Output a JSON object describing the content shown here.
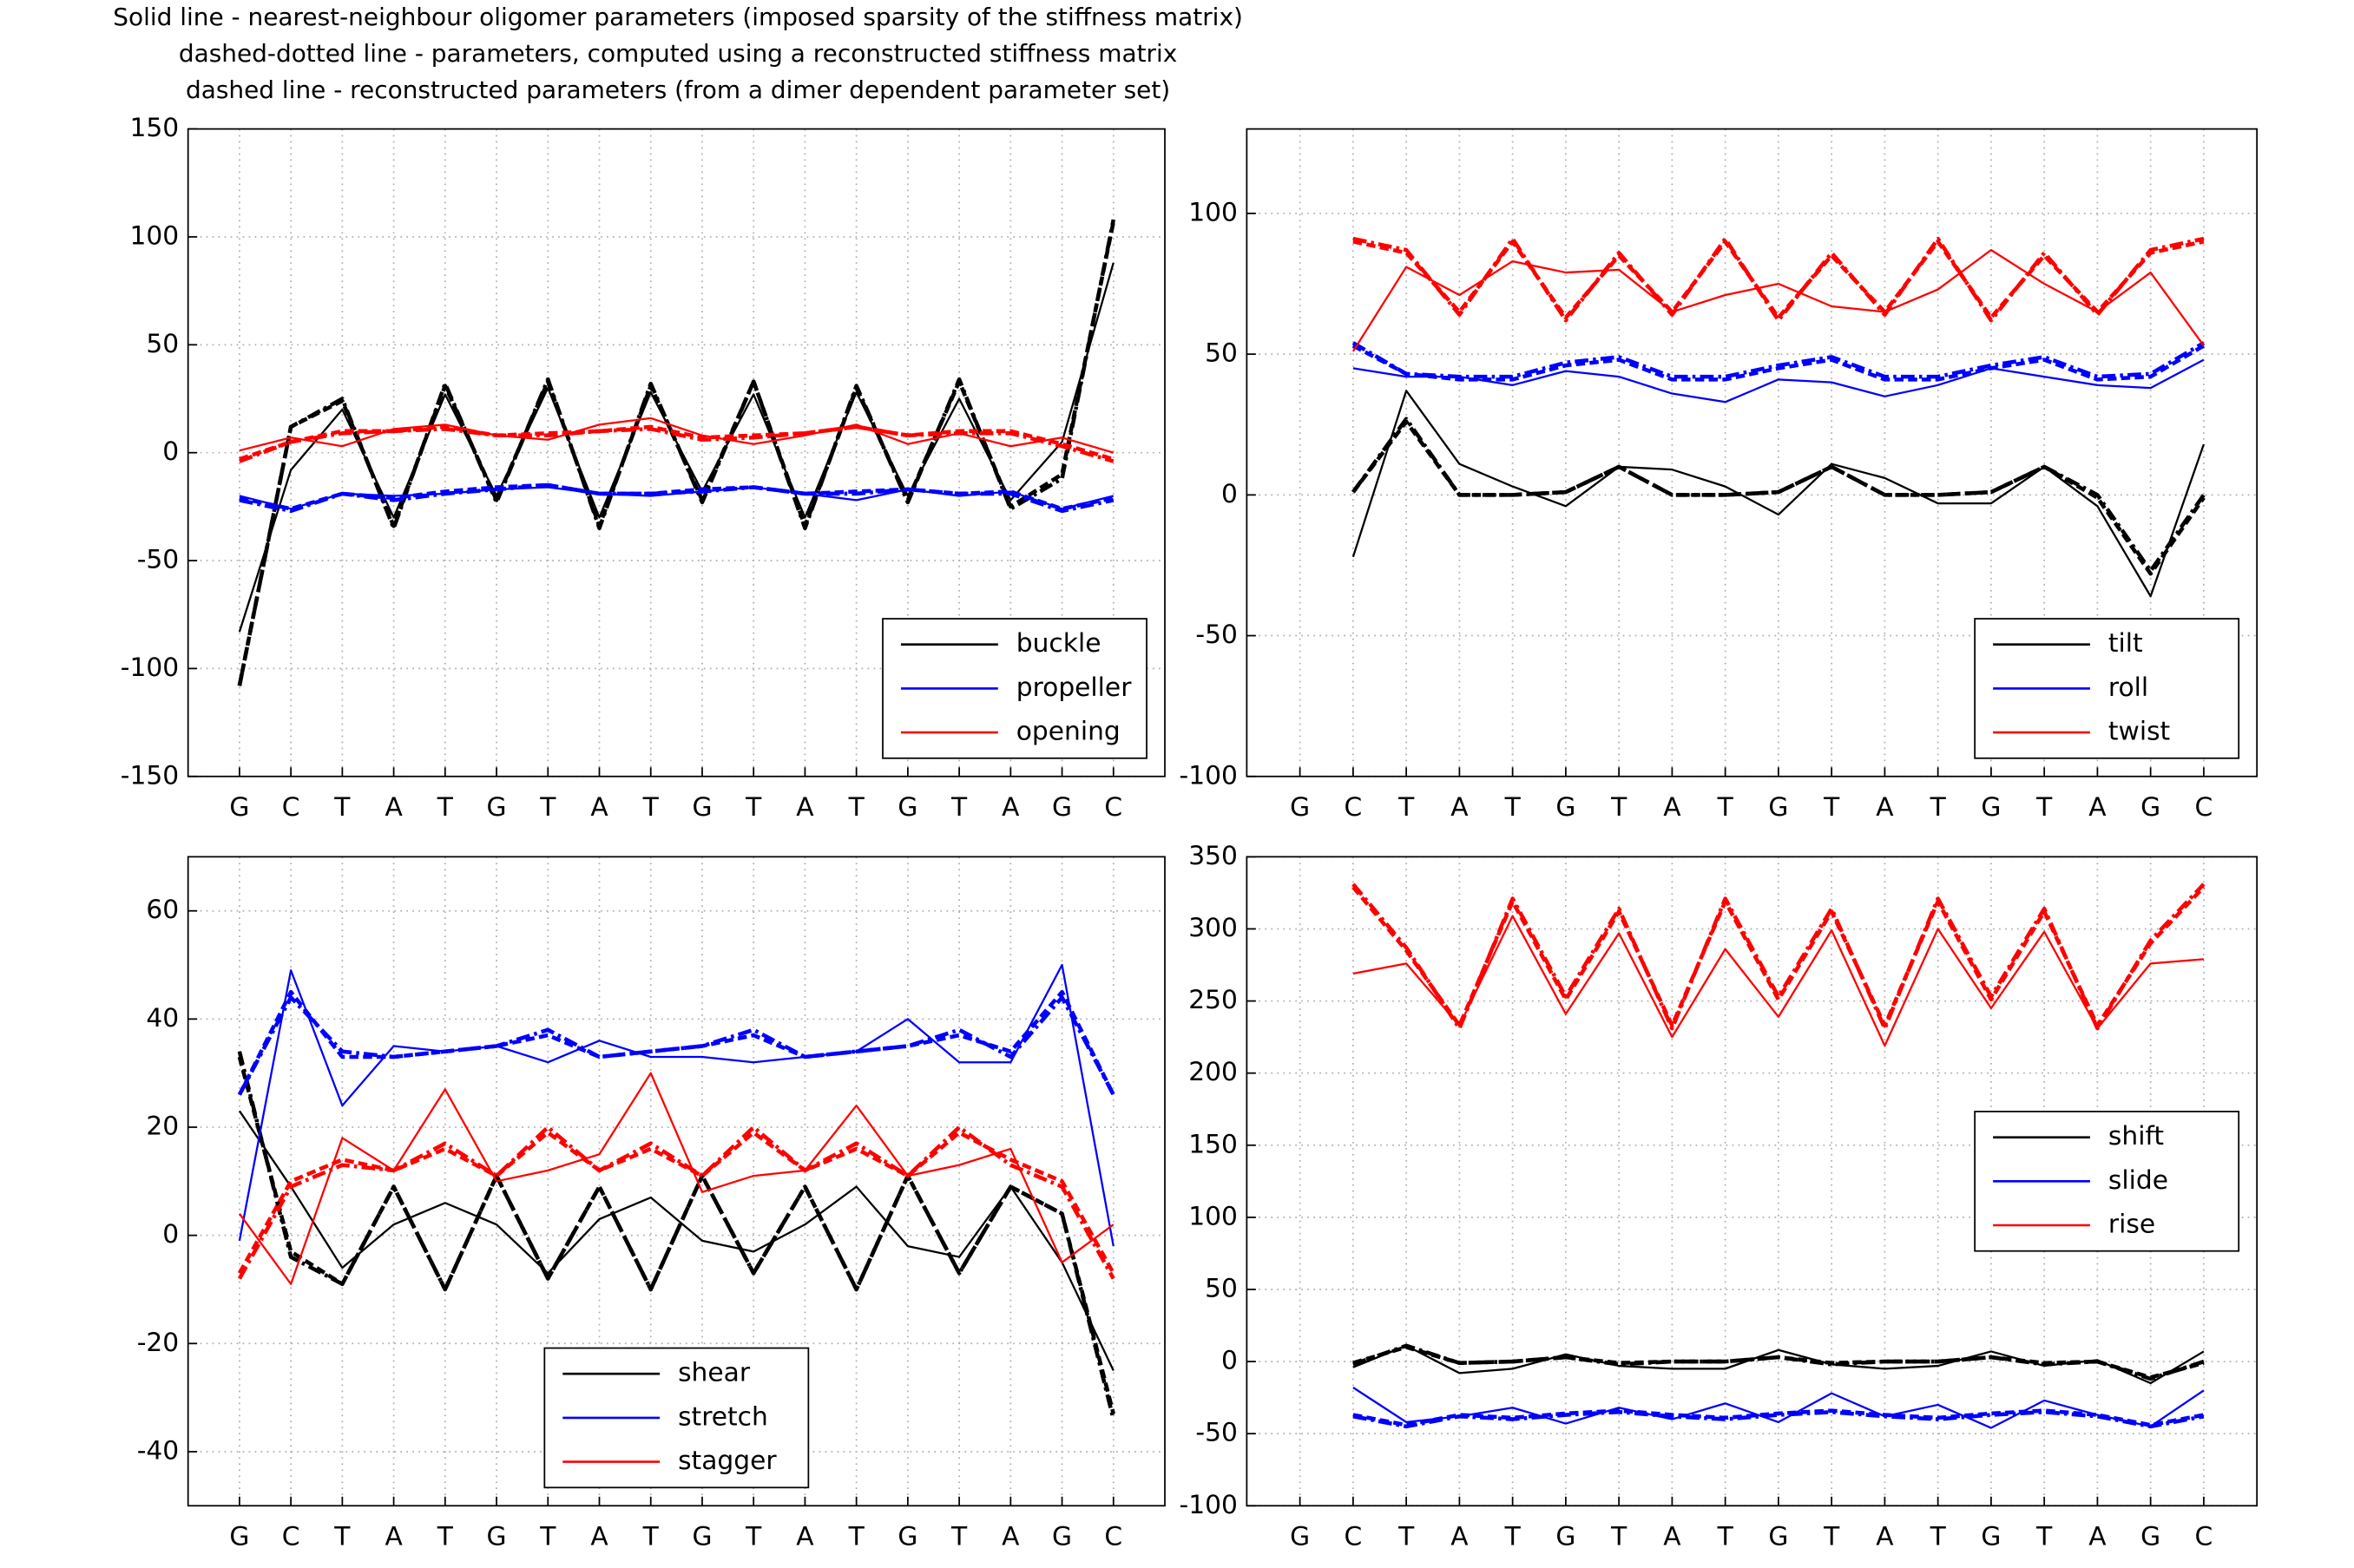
{
  "title": [
    "Solid line - nearest-neighbour oligomer parameters (imposed sparsity of the stiffness matrix)",
    "dashed-dotted line - parameters, computed using a reconstructed stiffness matrix",
    "dashed line - reconstructed parameters (from a dimer dependent parameter set)"
  ],
  "chart_data": [
    {
      "type": "line",
      "categories": [
        "G",
        "C",
        "T",
        "A",
        "T",
        "G",
        "T",
        "A",
        "T",
        "G",
        "T",
        "A",
        "T",
        "G",
        "T",
        "A",
        "G",
        "C"
      ],
      "ylim": [
        -150,
        150
      ],
      "yticks": [
        -150,
        -100,
        -50,
        0,
        50,
        100,
        150
      ],
      "grid": true,
      "legend": "lower right",
      "series": [
        {
          "name": "buckle",
          "color": "#000000",
          "style": "solid",
          "values": [
            -83,
            -8,
            20,
            -30,
            27,
            -20,
            30,
            -30,
            28,
            -18,
            27,
            -30,
            28,
            -20,
            25,
            -22,
            5,
            88
          ]
        },
        {
          "color": "#000000",
          "style": "dashdot",
          "values": [
            -108,
            12,
            25,
            -35,
            32,
            -23,
            34,
            -35,
            32,
            -23,
            33,
            -35,
            31,
            -23,
            34,
            -26,
            -12,
            108
          ]
        },
        {
          "color": "#000000",
          "style": "dashed",
          "values": [
            -108,
            12,
            24,
            -34,
            31,
            -22,
            33,
            -34,
            31,
            -22,
            33,
            -34,
            30,
            -22,
            33,
            -25,
            -10,
            107
          ]
        },
        {
          "name": "propeller",
          "color": "#0000ff",
          "style": "solid",
          "values": [
            -20,
            -26,
            -19,
            -20,
            -19,
            -17,
            -16,
            -19,
            -20,
            -18,
            -16,
            -19,
            -22,
            -17,
            -20,
            -18,
            -26,
            -20
          ]
        },
        {
          "color": "#0000ff",
          "style": "dashdot",
          "values": [
            -22,
            -27,
            -19,
            -22,
            -19,
            -17,
            -15,
            -19,
            -19,
            -18,
            -16,
            -19,
            -19,
            -17,
            -19,
            -19,
            -27,
            -22
          ]
        },
        {
          "color": "#0000ff",
          "style": "dashed",
          "values": [
            -21,
            -26,
            -19,
            -21,
            -18,
            -16,
            -15,
            -19,
            -19,
            -17,
            -16,
            -19,
            -18,
            -17,
            -19,
            -18,
            -26,
            -21
          ]
        },
        {
          "name": "opening",
          "color": "#ff0000",
          "style": "solid",
          "values": [
            1,
            7,
            3,
            11,
            13,
            8,
            6,
            13,
            16,
            8,
            4,
            8,
            13,
            4,
            9,
            3,
            7,
            0
          ]
        },
        {
          "color": "#ff0000",
          "style": "dashdot",
          "values": [
            -4,
            5,
            9,
            10,
            11,
            8,
            8,
            10,
            11,
            6,
            7,
            9,
            12,
            8,
            9,
            9,
            3,
            -4
          ]
        },
        {
          "color": "#ff0000",
          "style": "dashed",
          "values": [
            -3,
            5,
            10,
            10,
            12,
            8,
            9,
            10,
            12,
            7,
            8,
            9,
            12,
            8,
            10,
            10,
            4,
            -3
          ]
        }
      ]
    },
    {
      "type": "line",
      "categories": [
        "G",
        "C",
        "T",
        "A",
        "T",
        "G",
        "T",
        "A",
        "T",
        "G",
        "T",
        "A",
        "T",
        "G",
        "T",
        "A",
        "G",
        "C"
      ],
      "ylim": [
        -100,
        130
      ],
      "yticks": [
        -100,
        -50,
        0,
        50,
        100
      ],
      "grid": true,
      "legend": "lower right",
      "series": [
        {
          "name": "tilt",
          "color": "#000000",
          "style": "solid",
          "values": [
            null,
            -22,
            37,
            11,
            3,
            -4,
            10,
            9,
            3,
            -7,
            11,
            6,
            -3,
            -3,
            10,
            -4,
            -36,
            18
          ]
        },
        {
          "color": "#000000",
          "style": "dashdot",
          "values": [
            null,
            1,
            27,
            0,
            0,
            1,
            10,
            0,
            0,
            1,
            10,
            0,
            0,
            1,
            10,
            0,
            -27,
            0
          ]
        },
        {
          "color": "#000000",
          "style": "dashed",
          "values": [
            null,
            1,
            26,
            0,
            0,
            1,
            10,
            0,
            0,
            1,
            10,
            0,
            0,
            1,
            10,
            -1,
            -28,
            -1
          ]
        },
        {
          "name": "roll",
          "color": "#0000ff",
          "style": "solid",
          "values": [
            null,
            45,
            42,
            42,
            39,
            44,
            42,
            36,
            33,
            41,
            40,
            35,
            39,
            45,
            42,
            39,
            38,
            48
          ]
        },
        {
          "color": "#0000ff",
          "style": "dashdot",
          "values": [
            null,
            54,
            43,
            42,
            42,
            47,
            49,
            42,
            42,
            46,
            49,
            42,
            42,
            46,
            49,
            42,
            43,
            54
          ]
        },
        {
          "color": "#0000ff",
          "style": "dashed",
          "values": [
            null,
            53,
            43,
            41,
            41,
            46,
            48,
            41,
            41,
            45,
            48,
            41,
            41,
            45,
            48,
            41,
            42,
            53
          ]
        },
        {
          "name": "twist",
          "color": "#ff0000",
          "style": "solid",
          "values": [
            null,
            51,
            81,
            71,
            83,
            79,
            80,
            65,
            71,
            75,
            67,
            65,
            73,
            87,
            75,
            65,
            79,
            53
          ]
        },
        {
          "color": "#ff0000",
          "style": "dashdot",
          "values": [
            null,
            91,
            87,
            64,
            91,
            62,
            86,
            64,
            91,
            62,
            86,
            64,
            91,
            62,
            86,
            64,
            87,
            91
          ]
        },
        {
          "color": "#ff0000",
          "style": "dashed",
          "values": [
            null,
            90,
            86,
            65,
            90,
            63,
            85,
            65,
            90,
            63,
            85,
            65,
            90,
            63,
            85,
            65,
            86,
            90
          ]
        }
      ]
    },
    {
      "type": "line",
      "categories": [
        "G",
        "C",
        "T",
        "A",
        "T",
        "G",
        "T",
        "A",
        "T",
        "G",
        "T",
        "A",
        "T",
        "G",
        "T",
        "A",
        "G",
        "C"
      ],
      "ylim": [
        -50,
        70
      ],
      "yticks": [
        -40,
        -20,
        0,
        20,
        40,
        60
      ],
      "grid": true,
      "legend": "lower center",
      "series": [
        {
          "name": "shear",
          "color": "#000000",
          "style": "solid",
          "values": [
            23,
            9,
            -6,
            2,
            6,
            2,
            -7,
            3,
            7,
            -1,
            -3,
            2,
            9,
            -2,
            -4,
            9,
            -5,
            -25
          ]
        },
        {
          "color": "#000000",
          "style": "dashdot",
          "values": [
            34,
            -4,
            -9,
            9,
            -10,
            11,
            -8,
            9,
            -10,
            11,
            -7,
            9,
            -10,
            11,
            -7,
            9,
            4,
            -34
          ]
        },
        {
          "color": "#000000",
          "style": "dashed",
          "values": [
            33,
            -3,
            -9,
            9,
            -10,
            11,
            -8,
            9,
            -10,
            11,
            -7,
            9,
            -10,
            11,
            -7,
            9,
            4,
            -33
          ]
        },
        {
          "name": "stretch",
          "color": "#0000ff",
          "style": "solid",
          "values": [
            -1,
            49,
            24,
            35,
            34,
            35,
            32,
            36,
            33,
            33,
            32,
            33,
            34,
            40,
            32,
            32,
            50,
            -2
          ]
        },
        {
          "color": "#0000ff",
          "style": "dashdot",
          "values": [
            26,
            44,
            34,
            33,
            34,
            35,
            38,
            33,
            34,
            35,
            38,
            33,
            34,
            35,
            38,
            33,
            44,
            26
          ]
        },
        {
          "color": "#0000ff",
          "style": "dashed",
          "values": [
            26,
            45,
            33,
            33,
            34,
            35,
            37,
            33,
            34,
            35,
            37,
            33,
            34,
            35,
            37,
            34,
            45,
            26
          ]
        },
        {
          "name": "stagger",
          "color": "#ff0000",
          "style": "solid",
          "values": [
            4,
            -9,
            18,
            12,
            27,
            10,
            12,
            15,
            30,
            8,
            11,
            12,
            24,
            11,
            13,
            16,
            -5,
            2
          ]
        },
        {
          "color": "#ff0000",
          "style": "dashdot",
          "values": [
            -8,
            9,
            13,
            12,
            17,
            11,
            20,
            12,
            17,
            11,
            20,
            12,
            17,
            11,
            20,
            13,
            9,
            -8
          ]
        },
        {
          "color": "#ff0000",
          "style": "dashed",
          "values": [
            -7,
            10,
            14,
            12,
            16,
            11,
            19,
            12,
            16,
            11,
            19,
            12,
            16,
            11,
            19,
            14,
            10,
            -7
          ]
        }
      ]
    },
    {
      "type": "line",
      "categories": [
        "G",
        "C",
        "T",
        "A",
        "T",
        "G",
        "T",
        "A",
        "T",
        "G",
        "T",
        "A",
        "T",
        "G",
        "T",
        "A",
        "G",
        "C"
      ],
      "ylim": [
        -100,
        350
      ],
      "yticks": [
        -100,
        -50,
        0,
        50,
        100,
        150,
        200,
        250,
        300,
        350
      ],
      "grid": true,
      "legend": "center right",
      "series": [
        {
          "name": "shift",
          "color": "#000000",
          "style": "solid",
          "values": [
            null,
            -4,
            11,
            -8,
            -5,
            5,
            -3,
            -5,
            -5,
            8,
            -2,
            -5,
            -3,
            7,
            -3,
            1,
            -15,
            7
          ]
        },
        {
          "color": "#000000",
          "style": "dashdot",
          "values": [
            null,
            -2,
            11,
            -1,
            0,
            3,
            -2,
            0,
            0,
            3,
            -2,
            0,
            0,
            3,
            -2,
            0,
            -12,
            0
          ]
        },
        {
          "color": "#000000",
          "style": "dashed",
          "values": [
            null,
            -1,
            10,
            -1,
            0,
            3,
            -1,
            0,
            0,
            3,
            -1,
            0,
            0,
            3,
            -1,
            0,
            -11,
            -1
          ]
        },
        {
          "name": "slide",
          "color": "#0000ff",
          "style": "solid",
          "values": [
            null,
            -18,
            -42,
            -38,
            -32,
            -43,
            -32,
            -40,
            -29,
            -42,
            -22,
            -38,
            -30,
            -46,
            -27,
            -37,
            -45,
            -20
          ]
        },
        {
          "color": "#0000ff",
          "style": "dashdot",
          "values": [
            null,
            -38,
            -45,
            -38,
            -40,
            -37,
            -35,
            -38,
            -40,
            -37,
            -35,
            -38,
            -40,
            -37,
            -35,
            -38,
            -45,
            -38
          ]
        },
        {
          "color": "#0000ff",
          "style": "dashed",
          "values": [
            null,
            -37,
            -44,
            -37,
            -39,
            -36,
            -34,
            -37,
            -39,
            -36,
            -34,
            -37,
            -39,
            -36,
            -34,
            -37,
            -44,
            -37
          ]
        },
        {
          "name": "rise",
          "color": "#ff0000",
          "style": "solid",
          "values": [
            null,
            269,
            276,
            233,
            309,
            241,
            297,
            225,
            286,
            239,
            299,
            219,
            300,
            245,
            298,
            231,
            276,
            279
          ]
        },
        {
          "color": "#ff0000",
          "style": "dashdot",
          "values": [
            null,
            331,
            287,
            231,
            321,
            253,
            314,
            231,
            321,
            253,
            314,
            231,
            321,
            253,
            314,
            231,
            292,
            331
          ]
        },
        {
          "color": "#ff0000",
          "style": "dashed",
          "values": [
            null,
            329,
            285,
            233,
            319,
            251,
            312,
            233,
            319,
            251,
            312,
            233,
            319,
            251,
            312,
            233,
            290,
            329
          ]
        }
      ]
    }
  ]
}
